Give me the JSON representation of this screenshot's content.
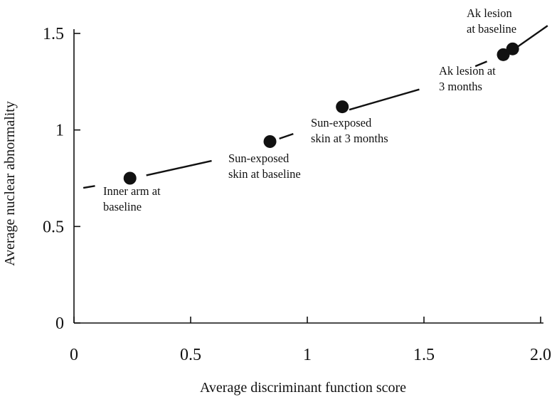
{
  "chart_data": {
    "type": "scatter",
    "title": "",
    "xlabel": "Average discriminant function score",
    "ylabel": "Average nuclear abnormality",
    "xlim": [
      0,
      2.0
    ],
    "ylim": [
      0,
      1.5
    ],
    "xticks": [
      {
        "value": 0,
        "label": "0"
      },
      {
        "value": 0.5,
        "label": "0.5"
      },
      {
        "value": 1,
        "label": "1"
      },
      {
        "value": 1.5,
        "label": "1.5"
      },
      {
        "value": 2.0,
        "label": "2.0"
      }
    ],
    "yticks": [
      {
        "value": 0,
        "label": "0"
      },
      {
        "value": 0.5,
        "label": "0.5"
      },
      {
        "value": 1,
        "label": "1"
      },
      {
        "value": 1.5,
        "label": "1.5"
      }
    ],
    "grid": false,
    "points": [
      {
        "x": 0.24,
        "y": 0.75,
        "label": [
          "Inner arm at",
          "baseline"
        ]
      },
      {
        "x": 0.84,
        "y": 0.94,
        "label": [
          "Sun-exposed",
          "skin at baseline"
        ]
      },
      {
        "x": 1.15,
        "y": 1.12,
        "label": [
          "Sun-exposed",
          "skin at 3 months"
        ]
      },
      {
        "x": 1.84,
        "y": 1.39,
        "label": [
          "Ak lesion at",
          "3 months"
        ]
      },
      {
        "x": 1.88,
        "y": 1.42,
        "label": [
          "Ak lesion",
          "at baseline"
        ]
      }
    ],
    "trendline": {
      "style": "dashed",
      "segments": [
        [
          [
            0.04,
            0.7
          ],
          [
            0.09,
            0.71
          ]
        ],
        [
          [
            0.31,
            0.765
          ],
          [
            0.59,
            0.84
          ]
        ],
        [
          [
            0.88,
            0.955
          ],
          [
            0.94,
            0.98
          ]
        ],
        [
          [
            1.18,
            1.105
          ],
          [
            1.48,
            1.21
          ]
        ],
        [
          [
            1.72,
            1.33
          ],
          [
            1.77,
            1.355
          ]
        ],
        [
          [
            1.9,
            1.43
          ],
          [
            2.03,
            1.54
          ]
        ]
      ]
    }
  }
}
